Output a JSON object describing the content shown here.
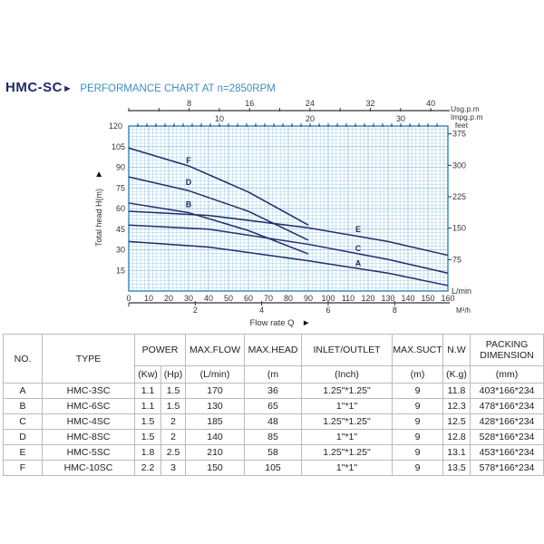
{
  "header": {
    "model": "HMC-SC",
    "title": "PERFORMANCE CHART AT n=2850RPM"
  },
  "chart_data": {
    "type": "line",
    "title": "PERFORMANCE CHART AT n=2850RPM",
    "xlabel": "Flow rate Q",
    "ylabel": "Total head H(m)",
    "x_unit": "L/min",
    "xlim": [
      0,
      160
    ],
    "ylim": [
      0,
      120
    ],
    "x_ticks": [
      0,
      10,
      20,
      30,
      40,
      50,
      60,
      70,
      80,
      90,
      100,
      110,
      120,
      130,
      140,
      150,
      160
    ],
    "y_ticks": [
      15,
      30,
      45,
      60,
      75,
      90,
      105,
      120
    ],
    "grid": true,
    "secondary_axes": {
      "usgpm": {
        "label": "Usg.p.m",
        "ticks": [
          8,
          16,
          24,
          32,
          40
        ]
      },
      "impgpm": {
        "label": "Impg.p.m",
        "ticks": [
          10,
          20,
          30
        ]
      },
      "feet": {
        "label": "feet",
        "ticks": [
          75,
          150,
          225,
          300,
          375
        ]
      },
      "m3h": {
        "label": "M³/h",
        "ticks": [
          2,
          4,
          6,
          8
        ]
      }
    },
    "series": [
      {
        "name": "F",
        "x": [
          0,
          30,
          60,
          90
        ],
        "y": [
          104,
          91,
          72,
          48
        ],
        "label_at": [
          30,
          95
        ]
      },
      {
        "name": "D",
        "x": [
          0,
          30,
          60,
          90
        ],
        "y": [
          83,
          73,
          58,
          37
        ],
        "label_at": [
          30,
          79
        ]
      },
      {
        "name": "B",
        "x": [
          0,
          30,
          60,
          90
        ],
        "y": [
          64,
          57,
          44,
          27
        ],
        "label_at": [
          30,
          63
        ]
      },
      {
        "name": "E",
        "x": [
          0,
          40,
          90,
          130,
          160
        ],
        "y": [
          58,
          55,
          46,
          36,
          26
        ],
        "label_at": [
          115,
          45
        ]
      },
      {
        "name": "C",
        "x": [
          0,
          40,
          90,
          130,
          160
        ],
        "y": [
          48,
          45,
          34,
          23,
          13
        ],
        "label_at": [
          115,
          31
        ]
      },
      {
        "name": "A",
        "x": [
          0,
          40,
          90,
          130,
          160
        ],
        "y": [
          36,
          32,
          22,
          13,
          4
        ],
        "label_at": [
          115,
          20
        ]
      }
    ],
    "colors": {
      "grid": "#8ec3e0",
      "frame": "#3a8fc0",
      "curve": "#252a68"
    }
  },
  "table": {
    "headers": {
      "no": "NO.",
      "type": "TYPE",
      "power": "POWER",
      "max_flow": "MAX.FLOW",
      "max_head": "MAX.HEAD",
      "inlet_outlet": "INLET/OUTLET",
      "max_suct": "MAX.SUCT",
      "nw": "N.W",
      "packing": "PACKING DIMENSION"
    },
    "units": {
      "kw": "(Kw)",
      "hp": "(Hp)",
      "max_flow": "(L/min)",
      "max_head": "(m",
      "inlet_outlet": "(Inch)",
      "max_suct": "(m)",
      "nw": "(K.g)",
      "packing": "(mm)"
    },
    "rows": [
      [
        "A",
        "HMC-3SC",
        "1.1",
        "1.5",
        "170",
        "36",
        "1.25\"*1.25\"",
        "9",
        "11.8",
        "403*166*234"
      ],
      [
        "B",
        "HMC-6SC",
        "1.1",
        "1.5",
        "130",
        "65",
        "1\"*1\"",
        "9",
        "12.3",
        "478*166*234"
      ],
      [
        "C",
        "HMC-4SC",
        "1.5",
        "2",
        "185",
        "48",
        "1.25\"*1.25\"",
        "9",
        "12.5",
        "428*166*234"
      ],
      [
        "D",
        "HMC-8SC",
        "1.5",
        "2",
        "140",
        "85",
        "1\"*1\"",
        "9",
        "12.8",
        "528*166*234"
      ],
      [
        "E",
        "HMC-5SC",
        "1.8",
        "2.5",
        "210",
        "58",
        "1.25\"*1.25\"",
        "9",
        "13.1",
        "453*166*234"
      ],
      [
        "F",
        "HMC-10SC",
        "2.2",
        "3",
        "150",
        "105",
        "1\"*1\"",
        "9",
        "13.5",
        "578*166*234"
      ]
    ]
  }
}
